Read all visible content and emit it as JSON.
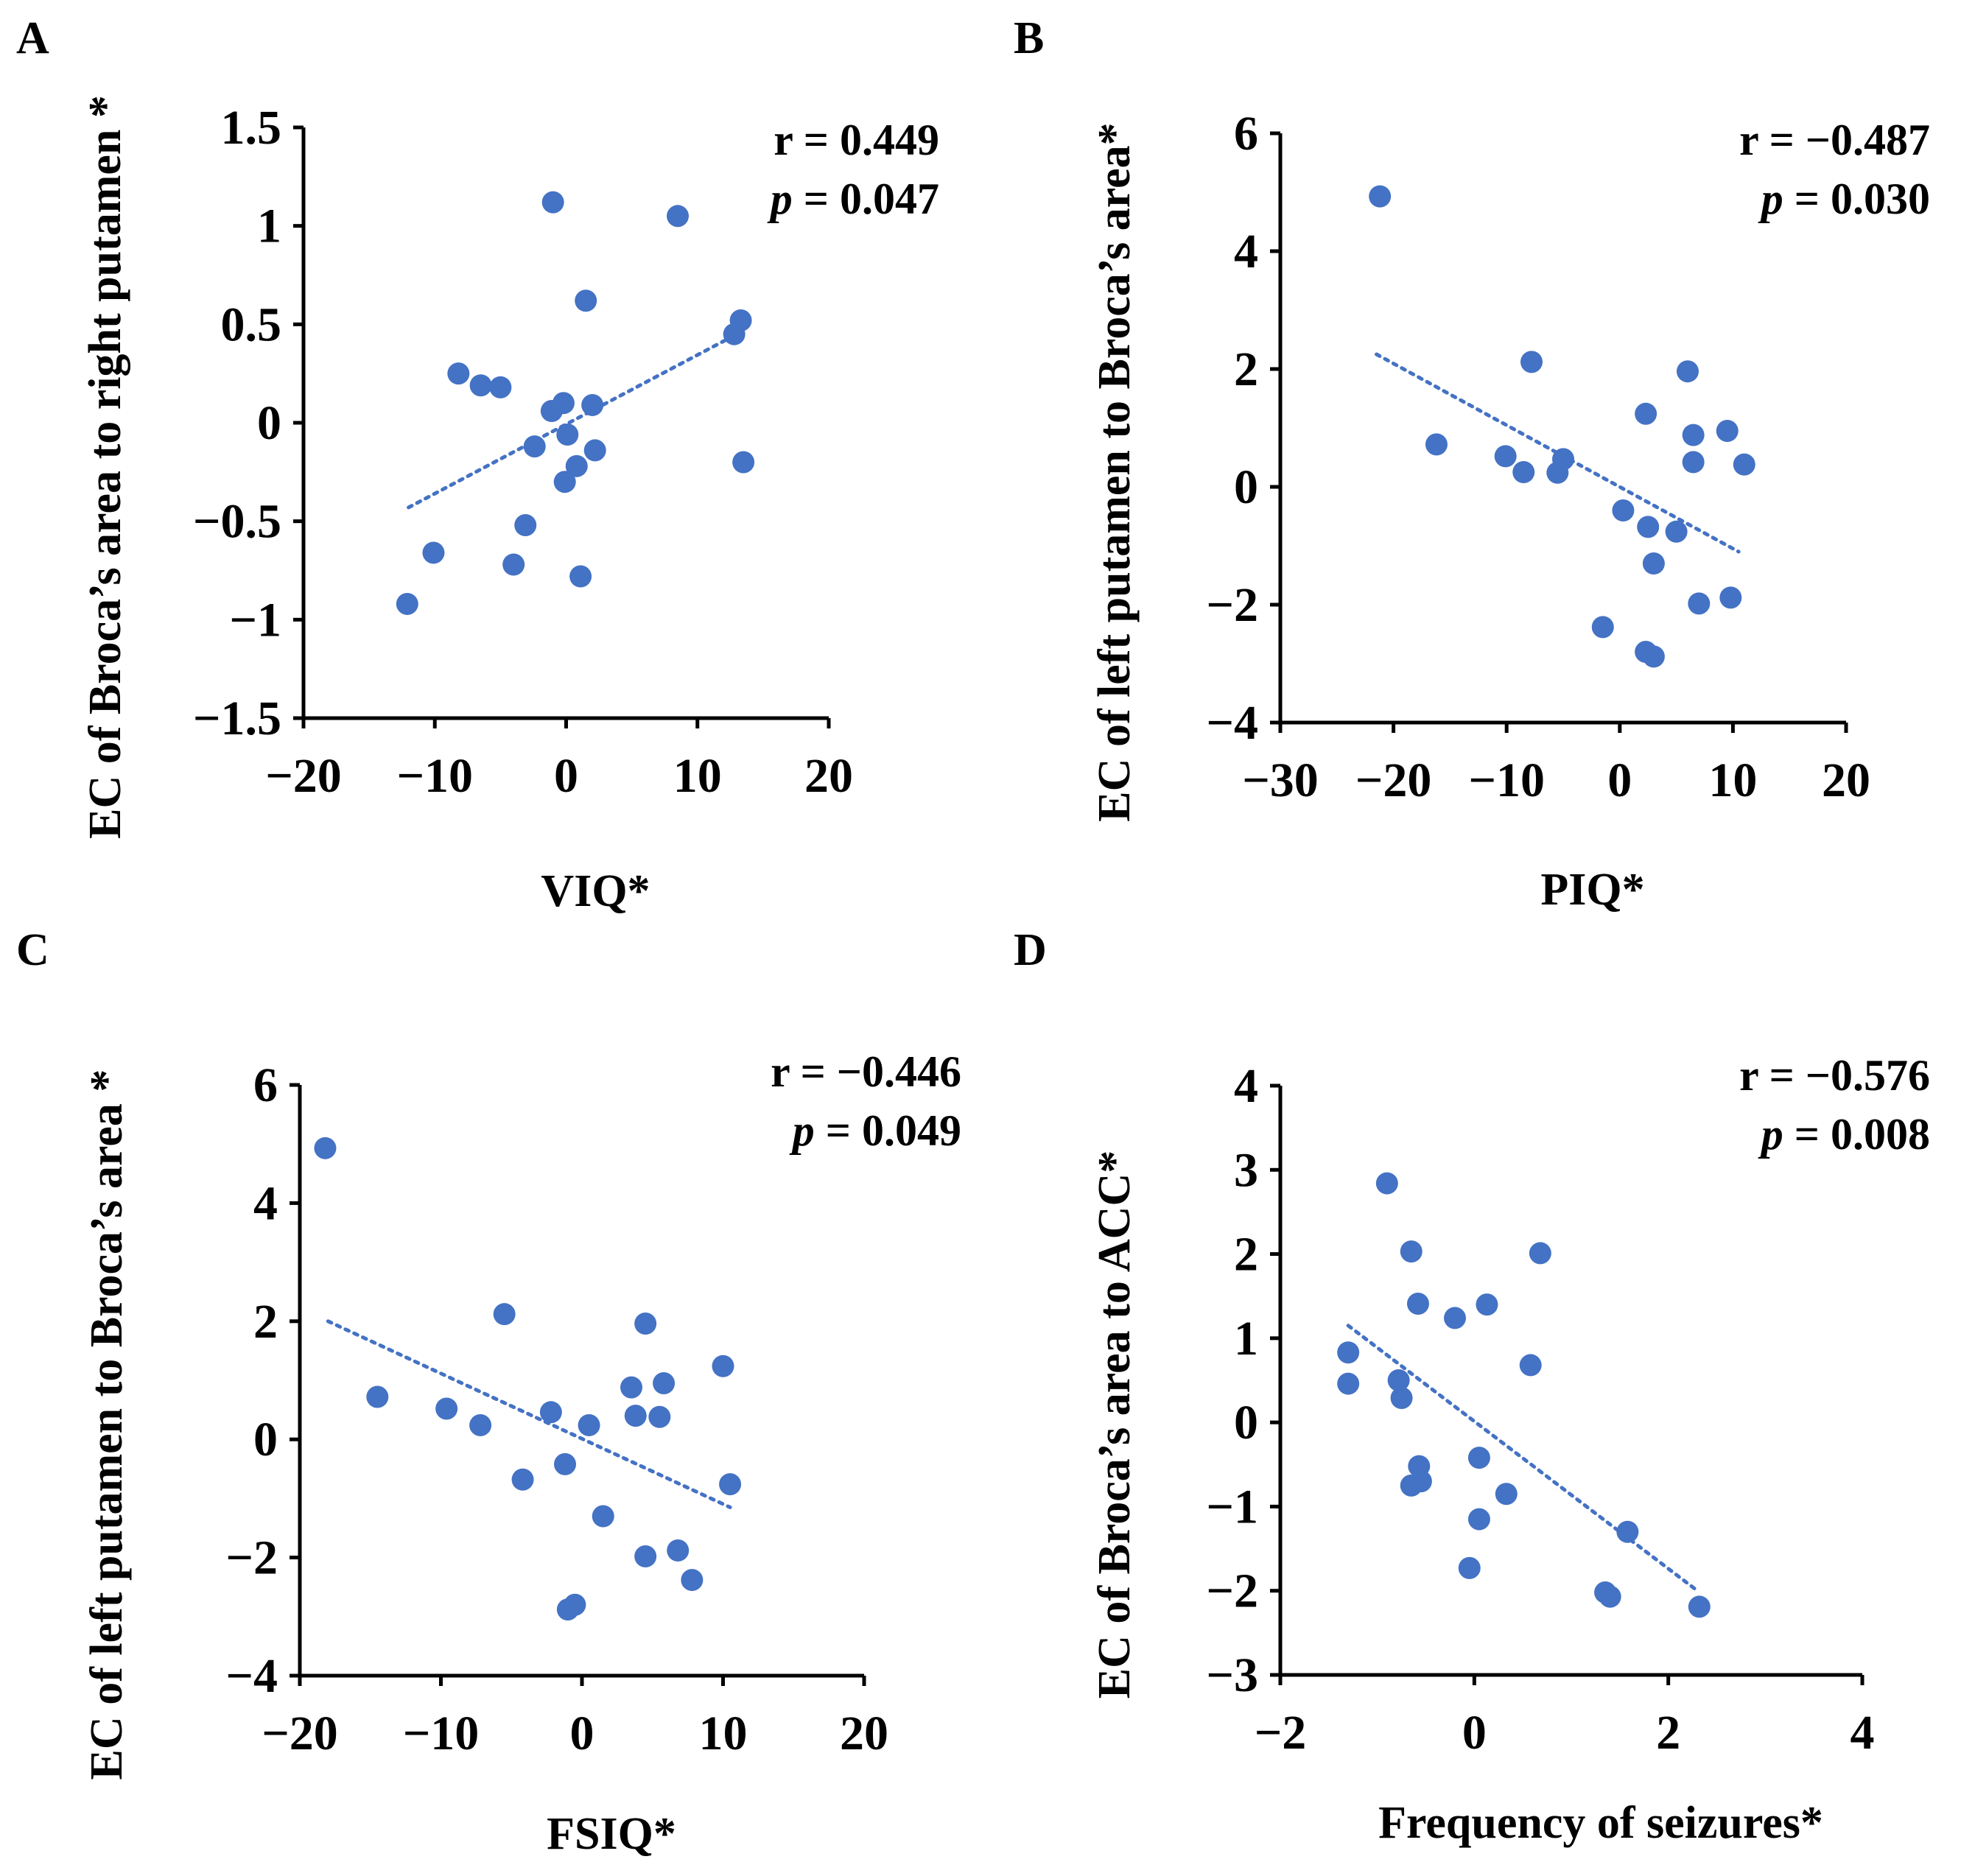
{
  "figure": {
    "point_color": "#4472C4",
    "trend_color": "#4472C4",
    "axis_color": "#000000"
  },
  "chart_data": [
    {
      "type": "scatter",
      "panel_label": "A",
      "xlabel": "VIQ*",
      "ylabel": "EC of Broca’s area to right putamen *",
      "xlim": [
        -20,
        20
      ],
      "ylim": [
        -1.5,
        1.5
      ],
      "xticks": [
        -20,
        -10,
        0,
        10,
        20
      ],
      "xtick_labels": [
        "−20",
        "−10",
        "0",
        "10",
        "20"
      ],
      "yticks": [
        -1.5,
        -1,
        -0.5,
        0,
        0.5,
        1,
        1.5
      ],
      "ytick_labels": [
        "−1.5",
        "−1",
        "−0.5",
        "0",
        "0.5",
        "1",
        "1.5"
      ],
      "annotation": {
        "r_text": "r = 0.449",
        "p_symbol": "p",
        "p_value_text": " = 0.047"
      },
      "trendline": {
        "x": [
          -12,
          13
        ],
        "y": [
          -0.43,
          0.45
        ]
      },
      "points": [
        {
          "x": -1,
          "y": 1.12
        },
        {
          "x": 8.5,
          "y": 1.05
        },
        {
          "x": 1.5,
          "y": 0.62
        },
        {
          "x": 13.3,
          "y": 0.52
        },
        {
          "x": 12.8,
          "y": 0.45
        },
        {
          "x": -8.2,
          "y": 0.25
        },
        {
          "x": -6.5,
          "y": 0.19
        },
        {
          "x": -5,
          "y": 0.18
        },
        {
          "x": -0.2,
          "y": 0.1
        },
        {
          "x": -1.1,
          "y": 0.06
        },
        {
          "x": 2,
          "y": 0.09
        },
        {
          "x": 0.1,
          "y": -0.06
        },
        {
          "x": -2.4,
          "y": -0.12
        },
        {
          "x": 2.2,
          "y": -0.14
        },
        {
          "x": 0.8,
          "y": -0.22
        },
        {
          "x": 13.5,
          "y": -0.2
        },
        {
          "x": -0.1,
          "y": -0.3
        },
        {
          "x": -3.1,
          "y": -0.52
        },
        {
          "x": -10.1,
          "y": -0.66
        },
        {
          "x": -4,
          "y": -0.72
        },
        {
          "x": 1.1,
          "y": -0.78
        },
        {
          "x": -12.1,
          "y": -0.92
        }
      ]
    },
    {
      "type": "scatter",
      "panel_label": "B",
      "xlabel": "PIQ*",
      "ylabel": "EC of left putamen to Broca’s area*",
      "xlim": [
        -30,
        20
      ],
      "ylim": [
        -4,
        6
      ],
      "xticks": [
        -30,
        -20,
        -10,
        0,
        10,
        20
      ],
      "xtick_labels": [
        "−30",
        "−20",
        "−10",
        "0",
        "10",
        "20"
      ],
      "yticks": [
        -4,
        -2,
        0,
        2,
        4,
        6
      ],
      "ytick_labels": [
        "−4",
        "−2",
        "0",
        "2",
        "4",
        "6"
      ],
      "annotation": {
        "r_text": "r = −0.487",
        "p_symbol": "p",
        "p_value_text": " = 0.030"
      },
      "trendline": {
        "x": [
          -21.5,
          10.5
        ],
        "y": [
          2.25,
          -1.1
        ]
      },
      "points": [
        {
          "x": -21.2,
          "y": 4.93
        },
        {
          "x": -7.8,
          "y": 2.12
        },
        {
          "x": 6,
          "y": 1.96
        },
        {
          "x": 2.3,
          "y": 1.24
        },
        {
          "x": -16.2,
          "y": 0.72
        },
        {
          "x": 6.5,
          "y": 0.88
        },
        {
          "x": 9.5,
          "y": 0.95
        },
        {
          "x": -10.1,
          "y": 0.52
        },
        {
          "x": -5,
          "y": 0.47
        },
        {
          "x": -8.5,
          "y": 0.25
        },
        {
          "x": -5.5,
          "y": 0.24
        },
        {
          "x": 6.5,
          "y": 0.42
        },
        {
          "x": 11,
          "y": 0.38
        },
        {
          "x": 0.3,
          "y": -0.4
        },
        {
          "x": 2.5,
          "y": -0.68
        },
        {
          "x": 5,
          "y": -0.76
        },
        {
          "x": 3,
          "y": -1.3
        },
        {
          "x": 7,
          "y": -1.98
        },
        {
          "x": 9.8,
          "y": -1.88
        },
        {
          "x": -1.5,
          "y": -2.38
        },
        {
          "x": 2.3,
          "y": -2.8
        },
        {
          "x": 3,
          "y": -2.88
        }
      ]
    },
    {
      "type": "scatter",
      "panel_label": "C",
      "xlabel": "FSIQ*",
      "ylabel": "EC of left putamen to Broca’s area *",
      "xlim": [
        -20,
        20
      ],
      "ylim": [
        -4,
        6
      ],
      "xticks": [
        -20,
        -10,
        0,
        10,
        20
      ],
      "xtick_labels": [
        "−20",
        "−10",
        "0",
        "10",
        "20"
      ],
      "yticks": [
        -4,
        -2,
        0,
        2,
        4,
        6
      ],
      "ytick_labels": [
        "−4",
        "−2",
        "0",
        "2",
        "4",
        "6"
      ],
      "annotation": {
        "r_text": "r = −0.446",
        "p_symbol": "p",
        "p_value_text": " = 0.049"
      },
      "trendline": {
        "x": [
          -18,
          10.5
        ],
        "y": [
          2,
          -1.15
        ]
      },
      "points": [
        {
          "x": -18.2,
          "y": 4.93
        },
        {
          "x": -5.5,
          "y": 2.12
        },
        {
          "x": 4.5,
          "y": 1.96
        },
        {
          "x": 10,
          "y": 1.24
        },
        {
          "x": -14.5,
          "y": 0.72
        },
        {
          "x": 3.5,
          "y": 0.88
        },
        {
          "x": 5.8,
          "y": 0.95
        },
        {
          "x": -9.6,
          "y": 0.52
        },
        {
          "x": -2.2,
          "y": 0.46
        },
        {
          "x": -7.2,
          "y": 0.24
        },
        {
          "x": 0.5,
          "y": 0.24
        },
        {
          "x": 3.8,
          "y": 0.4
        },
        {
          "x": 5.5,
          "y": 0.38
        },
        {
          "x": -1.2,
          "y": -0.42
        },
        {
          "x": -4.2,
          "y": -0.68
        },
        {
          "x": 10.5,
          "y": -0.76
        },
        {
          "x": 1.5,
          "y": -1.3
        },
        {
          "x": 4.5,
          "y": -1.98
        },
        {
          "x": 6.8,
          "y": -1.88
        },
        {
          "x": 7.8,
          "y": -2.38
        },
        {
          "x": -0.5,
          "y": -2.8
        },
        {
          "x": -1,
          "y": -2.88
        }
      ]
    },
    {
      "type": "scatter",
      "panel_label": "D",
      "xlabel": "Frequency of seizures*",
      "ylabel": "EC of Broca’s area to ACC*",
      "xlim": [
        -2,
        4
      ],
      "ylim": [
        -3,
        4
      ],
      "xticks": [
        -2,
        0,
        2,
        4
      ],
      "xtick_labels": [
        "−2",
        "0",
        "2",
        "4"
      ],
      "yticks": [
        -3,
        -2,
        -1,
        0,
        1,
        2,
        3,
        4
      ],
      "ytick_labels": [
        "−3",
        "−2",
        "−1",
        "0",
        "1",
        "2",
        "3",
        "4"
      ],
      "annotation": {
        "r_text": "r = −0.576",
        "p_symbol": "p",
        "p_value_text": " = 0.008"
      },
      "trendline": {
        "x": [
          -1.3,
          2.3
        ],
        "y": [
          1.15,
          -2
        ]
      },
      "points": [
        {
          "x": -0.9,
          "y": 2.84
        },
        {
          "x": -0.65,
          "y": 2.03
        },
        {
          "x": 0.68,
          "y": 2.01
        },
        {
          "x": -0.58,
          "y": 1.41
        },
        {
          "x": 0.13,
          "y": 1.4
        },
        {
          "x": -0.2,
          "y": 1.24
        },
        {
          "x": 0.58,
          "y": 0.68
        },
        {
          "x": -1.3,
          "y": 0.83
        },
        {
          "x": -1.3,
          "y": 0.46
        },
        {
          "x": -0.78,
          "y": 0.5
        },
        {
          "x": -0.75,
          "y": 0.29
        },
        {
          "x": 0.05,
          "y": -0.42
        },
        {
          "x": -0.57,
          "y": -0.52
        },
        {
          "x": -0.55,
          "y": -0.7
        },
        {
          "x": -0.65,
          "y": -0.75
        },
        {
          "x": 0.33,
          "y": -0.85
        },
        {
          "x": 0.05,
          "y": -1.15
        },
        {
          "x": -0.05,
          "y": -1.73
        },
        {
          "x": 1.58,
          "y": -1.3
        },
        {
          "x": 1.35,
          "y": -2.02
        },
        {
          "x": 1.4,
          "y": -2.07
        },
        {
          "x": 2.32,
          "y": -2.19
        }
      ]
    }
  ]
}
